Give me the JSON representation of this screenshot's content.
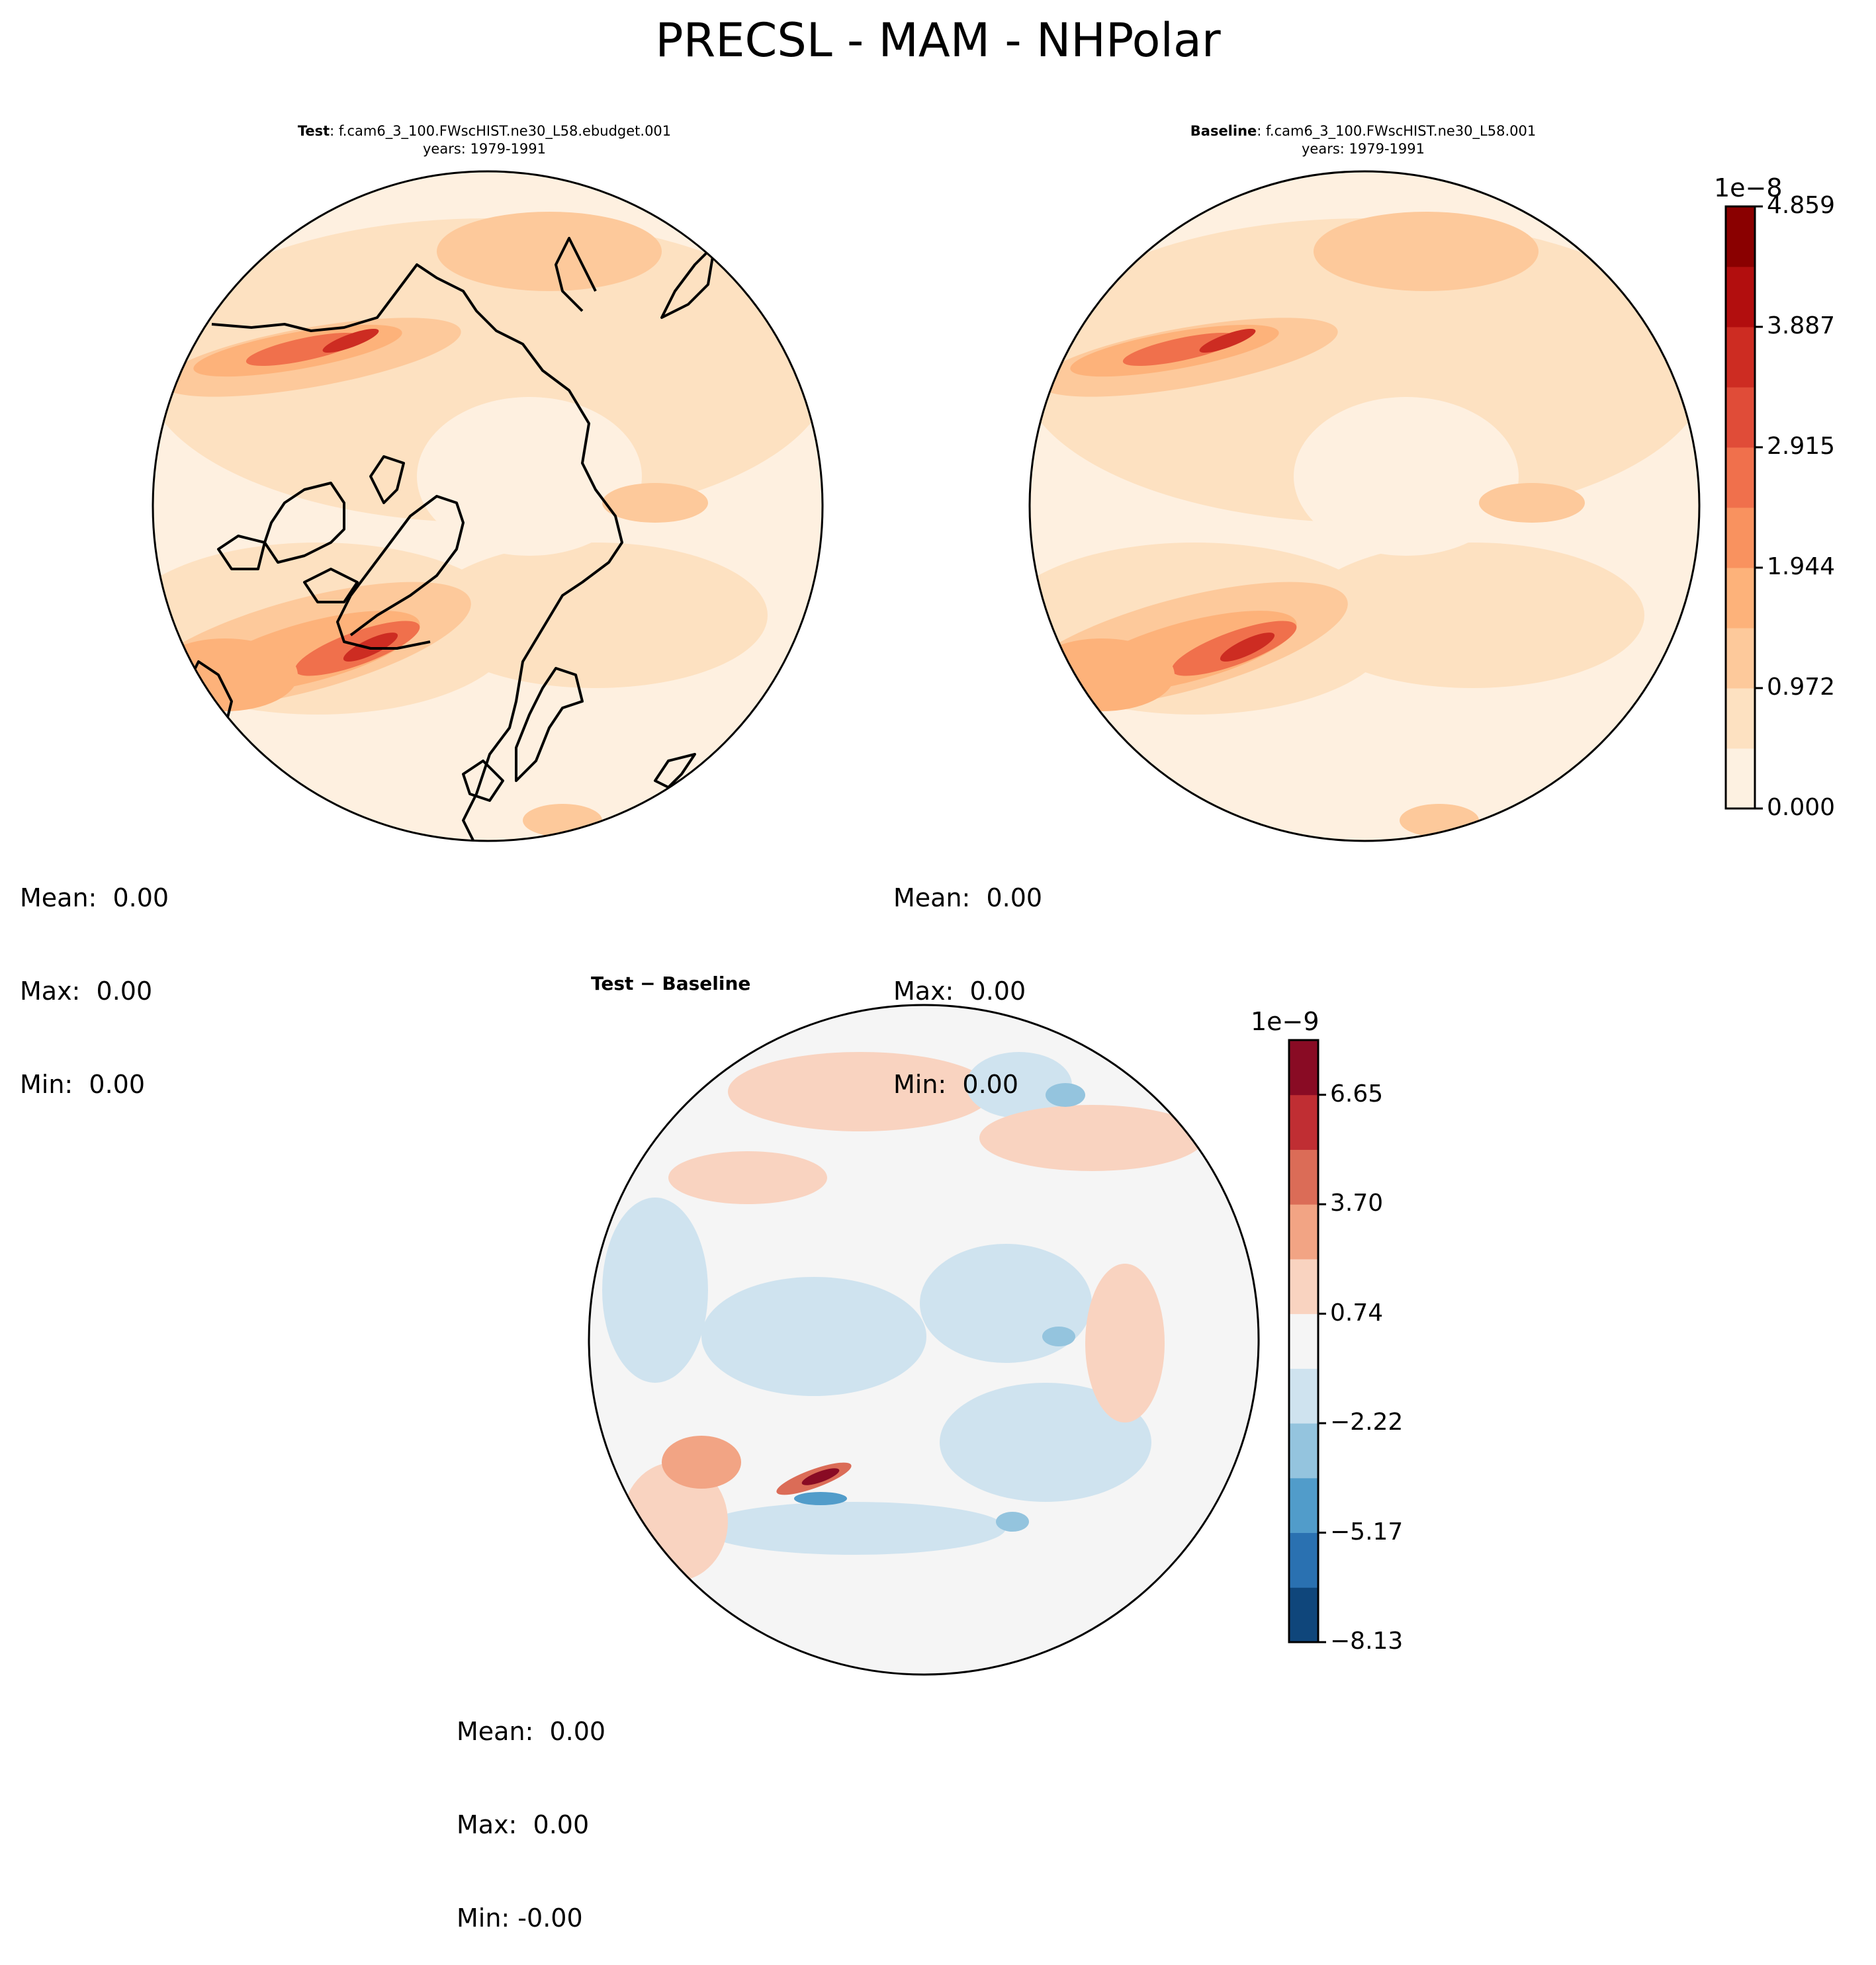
{
  "figure": {
    "suptitle": "PRECSL - MAM - NHPolar"
  },
  "panels": [
    {
      "id": "test",
      "title_bold": "Test",
      "title_rest": ": f.cam6_3_100.FWscHIST.ne30_L58.ebudget.001",
      "subtitle": "years: 1979-1991",
      "stats": {
        "mean": "Mean:  0.00",
        "max": "Max:  0.00",
        "min": "Min:  0.00"
      }
    },
    {
      "id": "baseline",
      "title_bold": "Baseline",
      "title_rest": ": f.cam6_3_100.FWscHIST.ne30_L58.001",
      "subtitle": "years: 1979-1991",
      "stats": {
        "mean": "Mean:  0.00",
        "max": "Max:  0.00",
        "min": "Min:  0.00"
      }
    },
    {
      "id": "diff",
      "title": "Test − Baseline",
      "stats": {
        "mean": "Mean:  0.00",
        "max": "Max:  0.00",
        "min": "Min: -0.00"
      }
    }
  ],
  "colorbars": {
    "main": {
      "exponent": "1e−8",
      "ticks": [
        "0.000",
        "0.972",
        "1.944",
        "2.915",
        "3.887",
        "4.859"
      ],
      "colors": [
        "#fdf1e1",
        "#fde1c1",
        "#fdc99b",
        "#fdb27a",
        "#f9925f",
        "#f0704c",
        "#e04c38",
        "#cd2c22",
        "#b20e0e",
        "#8a0000"
      ]
    },
    "diff": {
      "exponent": "1e−9",
      "ticks": [
        "−8.13",
        "−5.17",
        "−2.22",
        "0.74",
        "3.70",
        "6.65"
      ],
      "colors": [
        "#0f467b",
        "#2a71b1",
        "#519cca",
        "#94c4de",
        "#cfe3ef",
        "#f5f5f5",
        "#f9d3c0",
        "#f2a484",
        "#db6c57",
        "#c02e33",
        "#890b24"
      ]
    }
  },
  "map_style": {
    "ocean_test": "#fef0e0",
    "ocean_diff": "#f5f5f5",
    "coastline": "#000000"
  }
}
